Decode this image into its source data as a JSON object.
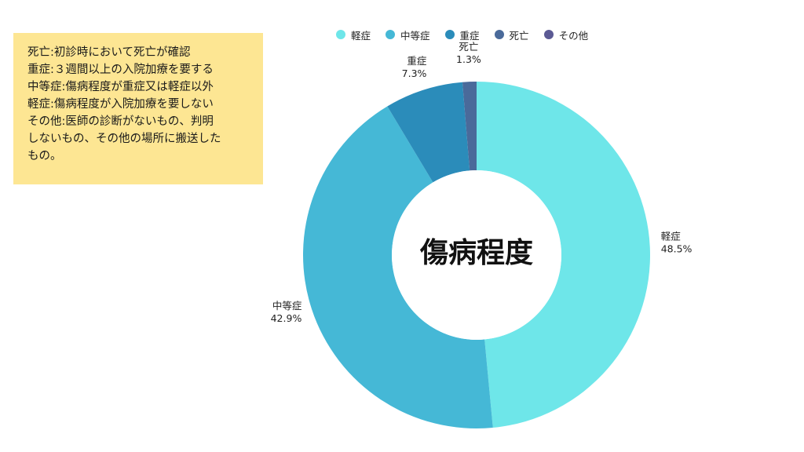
{
  "note": {
    "lines": [
      "死亡:初診時において死亡が確認",
      "重症:３週間以上の入院加療を要する",
      "中等症:傷病程度が重症又は軽症以外",
      "軽症:傷病程度が入院加療を要しない",
      "その他:医師の診断がないもの、判明",
      "しないもの、その他の場所に搬送した",
      "もの。"
    ]
  },
  "legend": [
    {
      "label": "軽症",
      "color": "#6ee6e9"
    },
    {
      "label": "中等症",
      "color": "#45b8d6"
    },
    {
      "label": "重症",
      "color": "#2b8cba"
    },
    {
      "label": "死亡",
      "color": "#4a6a9a"
    },
    {
      "label": "その他",
      "color": "#5b5a94"
    }
  ],
  "chart_data": {
    "type": "pie",
    "donut": true,
    "center_label": "傷病程度",
    "legend_position": "top",
    "slices": [
      {
        "label": "軽症",
        "value": 48.5,
        "value_label": "48.5%",
        "color": "#6ee6e9"
      },
      {
        "label": "中等症",
        "value": 42.9,
        "value_label": "42.9%",
        "color": "#45b8d6"
      },
      {
        "label": "重症",
        "value": 7.3,
        "value_label": "7.3%",
        "color": "#2b8cba"
      },
      {
        "label": "死亡",
        "value": 1.3,
        "value_label": "1.3%",
        "color": "#4a6a9a"
      }
    ]
  }
}
